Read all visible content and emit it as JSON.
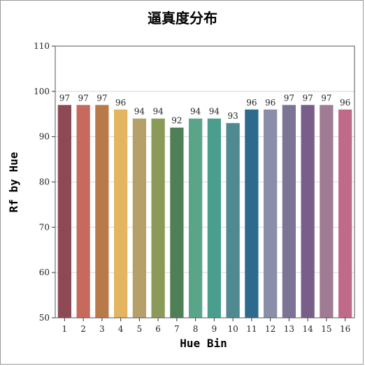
{
  "chart_data": {
    "type": "bar",
    "title": "逼真度分布",
    "xlabel": "Hue Bin",
    "ylabel": "Rf by Hue",
    "categories": [
      "1",
      "2",
      "3",
      "4",
      "5",
      "6",
      "7",
      "8",
      "9",
      "10",
      "11",
      "12",
      "13",
      "14",
      "15",
      "16"
    ],
    "values": [
      97,
      97,
      97,
      96,
      94,
      94,
      92,
      94,
      94,
      93,
      96,
      96,
      97,
      97,
      97,
      96
    ],
    "data_labels": [
      "97",
      "97",
      "97",
      "96",
      "94",
      "94",
      "92",
      "94",
      "94",
      "93",
      "96",
      "96",
      "97",
      "97",
      "97",
      "96"
    ],
    "ylim": [
      50,
      110
    ],
    "yticks": [
      50,
      60,
      70,
      80,
      90,
      100,
      110
    ],
    "ytick_labels": [
      "50",
      "60",
      "70",
      "80",
      "90",
      "100",
      "110"
    ],
    "grid": true,
    "legend": "none",
    "colors": [
      "#8e4a54",
      "#c76a5e",
      "#b97a4a",
      "#e2b55e",
      "#b5a06a",
      "#8a9a58",
      "#4f7f56",
      "#5aa58a",
      "#4a9e8e",
      "#4e8a90",
      "#2d6a8e",
      "#8a8ea8",
      "#7c7494",
      "#7a5e8a",
      "#a07c94",
      "#c06a8a"
    ]
  }
}
